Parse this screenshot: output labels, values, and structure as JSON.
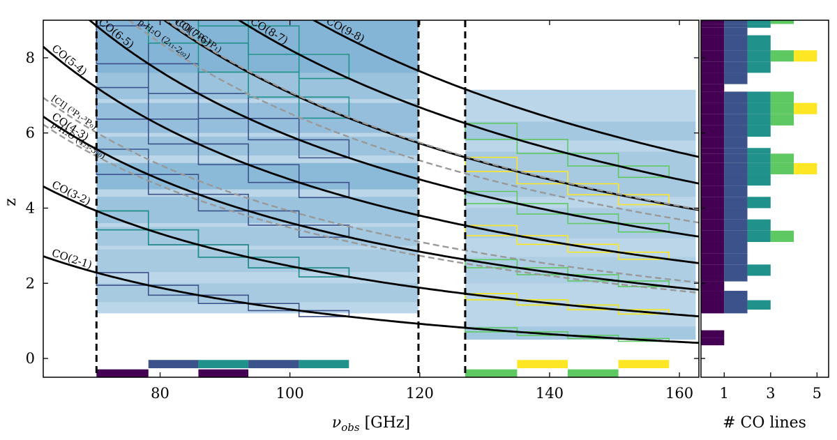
{
  "chart_data": [
    {
      "type": "line",
      "xlabel": "ν_obs [GHz]",
      "ylabel": "z",
      "xlim": [
        62,
        163
      ],
      "ylim": [
        -0.5,
        9.0
      ],
      "xticks": [
        80,
        100,
        120,
        140,
        160
      ],
      "yticks": [
        0,
        2,
        4,
        6,
        8
      ],
      "grid": false,
      "bands_GHz": [
        [
          70.2,
          119.8
        ],
        [
          127.0,
          162.5
        ]
      ],
      "band_edges_GHz": [
        70.2,
        119.8,
        127.0
      ],
      "lines": [
        {
          "label": "CO(2-1)",
          "rest_GHz": 230.538,
          "style": "solid",
          "color": "#000000"
        },
        {
          "label": "CO(3-2)",
          "rest_GHz": 345.796,
          "style": "solid",
          "color": "#000000"
        },
        {
          "label": "CO(4-3)",
          "rest_GHz": 461.041,
          "style": "solid",
          "color": "#000000"
        },
        {
          "label": "CO(5-4)",
          "rest_GHz": 576.268,
          "style": "solid",
          "color": "#000000"
        },
        {
          "label": "CO(6-5)",
          "rest_GHz": 691.473,
          "style": "solid",
          "color": "#000000"
        },
        {
          "label": "CO(7-6)",
          "rest_GHz": 806.652,
          "style": "solid",
          "color": "#000000"
        },
        {
          "label": "CO(8-7)",
          "rest_GHz": 921.8,
          "style": "solid",
          "color": "#000000"
        },
        {
          "label": "CO(9-8)",
          "rest_GHz": 1036.912,
          "style": "solid",
          "color": "#000000"
        },
        {
          "label": "[CI] (³P₁-³P₀)",
          "rest_GHz": 492.161,
          "style": "dashed",
          "color": "#999999"
        },
        {
          "label": "[CI] (³P₂-³P₁)",
          "rest_GHz": 809.342,
          "style": "dashed",
          "color": "#999999"
        },
        {
          "label": "p-H₂O (2₁₁-2₀₂)",
          "rest_GHz": 752.033,
          "style": "dashed",
          "color": "#999999"
        },
        {
          "label": "p-H₂O (4₂₃-3₃₀)",
          "rest_GHz": 448.001,
          "style": "dashed",
          "color": "#999999"
        }
      ],
      "tunings_GHz": [
        {
          "lo": 70.2,
          "hi": 78.2,
          "row": 0,
          "color": "#440154"
        },
        {
          "lo": 78.2,
          "hi": 85.9,
          "row": 1,
          "color": "#3b528b"
        },
        {
          "lo": 85.9,
          "hi": 93.6,
          "row": 0,
          "color": "#440154"
        },
        {
          "lo": 85.9,
          "hi": 93.6,
          "row": 1,
          "color": "#21918c"
        },
        {
          "lo": 93.6,
          "hi": 101.4,
          "row": 1,
          "color": "#3b528b"
        },
        {
          "lo": 101.4,
          "hi": 109.1,
          "row": 1,
          "color": "#21918c"
        },
        {
          "lo": 127.0,
          "hi": 135.0,
          "row": 0,
          "color": "#5ec962"
        },
        {
          "lo": 135.0,
          "hi": 142.8,
          "row": 1,
          "color": "#fde725"
        },
        {
          "lo": 142.8,
          "hi": 150.6,
          "row": 0,
          "color": "#5ec962"
        },
        {
          "lo": 150.6,
          "hi": 158.4,
          "row": 1,
          "color": "#fde725"
        }
      ],
      "coverage_bands": [
        {
          "band": "low",
          "zlo": 1.2,
          "zhi": 9.0,
          "alpha_profile": "mid-heavy"
        },
        {
          "band": "high",
          "zlo": 0.5,
          "zhi": 7.1,
          "alpha_profile": "light"
        }
      ]
    },
    {
      "type": "bar",
      "orientation": "horizontal",
      "xlabel": "# CO lines",
      "xticks": [
        1,
        3,
        5
      ],
      "xlim": [
        0,
        5.5
      ],
      "ylim": [
        -0.5,
        9.0
      ],
      "colormap": [
        "#440154",
        "#3b528b",
        "#21918c",
        "#5ec962",
        "#fde725"
      ],
      "series": [
        {
          "z_lo": 8.9,
          "z_hi": 9.0,
          "n": 4
        },
        {
          "z_lo": 8.8,
          "z_hi": 8.9,
          "n": 3
        },
        {
          "z_lo": 8.6,
          "z_hi": 8.8,
          "n": 2
        },
        {
          "z_lo": 8.2,
          "z_hi": 8.6,
          "n": 3
        },
        {
          "z_lo": 7.9,
          "z_hi": 8.2,
          "n": 5
        },
        {
          "z_lo": 7.6,
          "z_hi": 7.9,
          "n": 3
        },
        {
          "z_lo": 7.3,
          "z_hi": 7.6,
          "n": 2
        },
        {
          "z_lo": 7.1,
          "z_hi": 7.3,
          "n": 1
        },
        {
          "z_lo": 6.8,
          "z_hi": 7.1,
          "n": 4
        },
        {
          "z_lo": 6.5,
          "z_hi": 6.8,
          "n": 5
        },
        {
          "z_lo": 6.2,
          "z_hi": 6.5,
          "n": 4
        },
        {
          "z_lo": 5.9,
          "z_hi": 6.2,
          "n": 3
        },
        {
          "z_lo": 5.6,
          "z_hi": 5.9,
          "n": 2
        },
        {
          "z_lo": 5.45,
          "z_hi": 5.6,
          "n": 3
        },
        {
          "z_lo": 5.2,
          "z_hi": 5.45,
          "n": 4
        },
        {
          "z_lo": 4.9,
          "z_hi": 5.2,
          "n": 5
        },
        {
          "z_lo": 4.6,
          "z_hi": 4.9,
          "n": 3
        },
        {
          "z_lo": 4.3,
          "z_hi": 4.6,
          "n": 2
        },
        {
          "z_lo": 4.0,
          "z_hi": 4.3,
          "n": 3
        },
        {
          "z_lo": 3.7,
          "z_hi": 4.0,
          "n": 2
        },
        {
          "z_lo": 3.4,
          "z_hi": 3.7,
          "n": 3
        },
        {
          "z_lo": 3.1,
          "z_hi": 3.4,
          "n": 4
        },
        {
          "z_lo": 2.8,
          "z_hi": 3.1,
          "n": 2
        },
        {
          "z_lo": 2.5,
          "z_hi": 2.8,
          "n": 2
        },
        {
          "z_lo": 2.2,
          "z_hi": 2.5,
          "n": 3
        },
        {
          "z_lo": 2.05,
          "z_hi": 2.2,
          "n": 2
        },
        {
          "z_lo": 1.8,
          "z_hi": 2.05,
          "n": 1
        },
        {
          "z_lo": 1.55,
          "z_hi": 1.8,
          "n": 2
        },
        {
          "z_lo": 1.3,
          "z_hi": 1.55,
          "n": 3
        },
        {
          "z_lo": 1.2,
          "z_hi": 1.3,
          "n": 2
        },
        {
          "z_lo": 0.55,
          "z_hi": 0.75,
          "n": 1
        },
        {
          "z_lo": 0.35,
          "z_hi": 0.55,
          "n": 1
        }
      ]
    }
  ]
}
